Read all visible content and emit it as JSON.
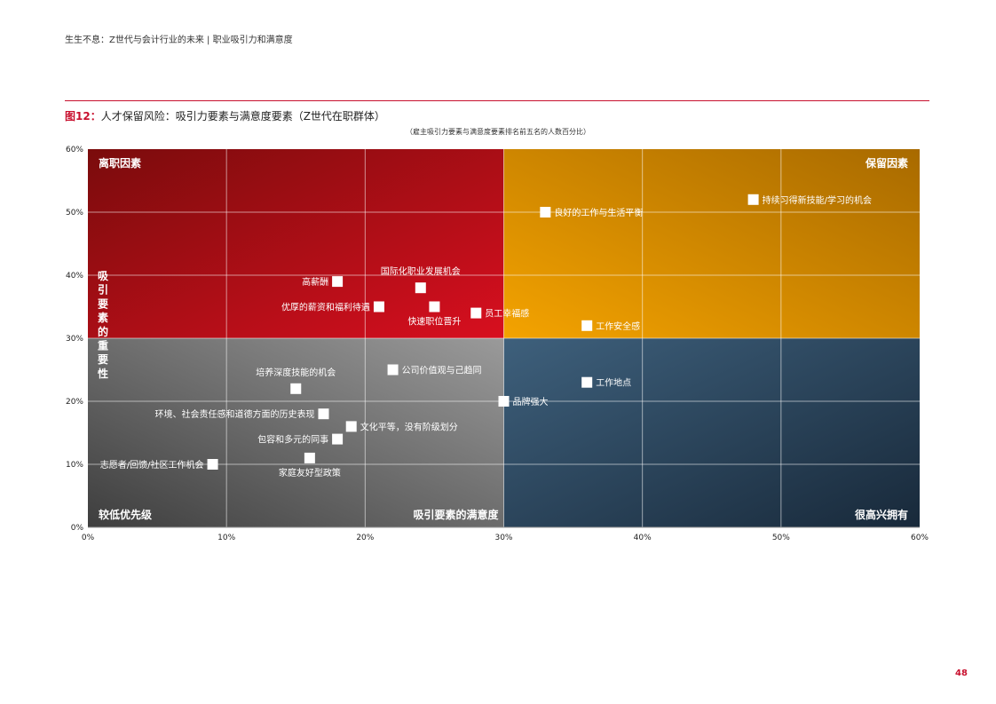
{
  "header": {
    "text": "生生不息：Z世代与会计行业的未来 | 职业吸引力和满意度"
  },
  "figure": {
    "number": "图12：",
    "title": "人才保留风险：吸引力要素与满意度要素（Z世代在职群体）",
    "subtitle": "（雇主吸引力要素与满意度要素排名前五名的人数百分比）"
  },
  "page_number": "48",
  "colors": {
    "accent": "#c8102e"
  },
  "chart_data": {
    "type": "scatter",
    "xlabel": "吸引要素的满意度",
    "ylabel": "吸引要素的重要性",
    "xlim": [
      0,
      60
    ],
    "ylim": [
      0,
      60
    ],
    "x_ticks": [
      "0%",
      "10%",
      "20%",
      "30%",
      "40%",
      "50%",
      "60%"
    ],
    "y_ticks": [
      "0%",
      "10%",
      "20%",
      "30%",
      "40%",
      "50%",
      "60%"
    ],
    "grid": true,
    "quadrants": {
      "top_left": "离职因素",
      "top_right": "保留因素",
      "bottom_left": "较低优先级",
      "bottom_right": "很高兴拥有"
    },
    "quadrant_colors": {
      "top_left": "#b80f17",
      "top_right": "#d88a00",
      "bottom_left": "#666666",
      "bottom_right": "#2e4a60"
    },
    "points": [
      {
        "label": "持续习得新技能/学习的机会",
        "x": 48,
        "y": 52
      },
      {
        "label": "良好的工作与生活平衡",
        "x": 33,
        "y": 50
      },
      {
        "label": "国际化职业发展机会",
        "x": 24,
        "y": 38
      },
      {
        "label": "高薪酬",
        "x": 18,
        "y": 39
      },
      {
        "label": "优厚的薪资和福利待遇",
        "x": 21,
        "y": 35
      },
      {
        "label": "快速职位晋升",
        "x": 25,
        "y": 35
      },
      {
        "label": "员工幸福感",
        "x": 28,
        "y": 34
      },
      {
        "label": "工作安全感",
        "x": 36,
        "y": 32
      },
      {
        "label": "公司价值观与己趋同",
        "x": 22,
        "y": 25
      },
      {
        "label": "培养深度技能的机会",
        "x": 15,
        "y": 22
      },
      {
        "label": "工作地点",
        "x": 36,
        "y": 23
      },
      {
        "label": "品牌强大",
        "x": 30,
        "y": 20
      },
      {
        "label": "环境、社会责任感和道德方面的历史表现",
        "x": 17,
        "y": 18
      },
      {
        "label": "文化平等，没有阶级划分",
        "x": 19,
        "y": 16
      },
      {
        "label": "包容和多元的同事",
        "x": 18,
        "y": 14
      },
      {
        "label": "家庭友好型政策",
        "x": 16,
        "y": 11
      },
      {
        "label": "志愿者/回馈/社区工作机会",
        "x": 9,
        "y": 10
      }
    ]
  }
}
